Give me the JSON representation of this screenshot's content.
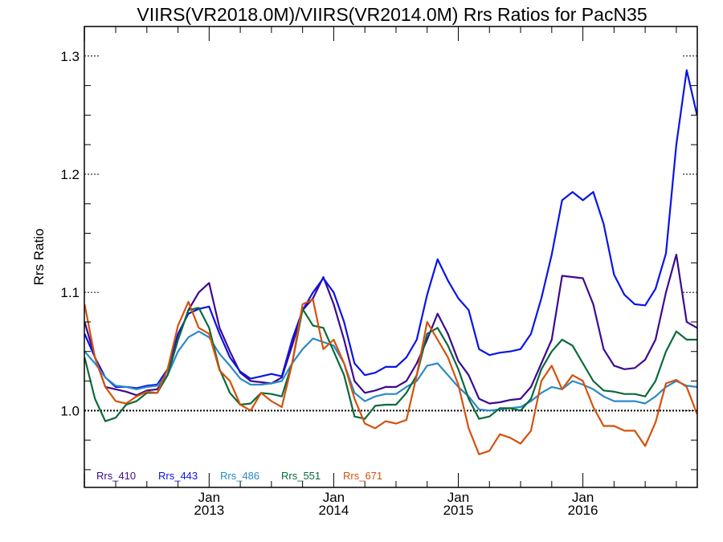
{
  "chart_data": {
    "type": "line",
    "title": "VIIRS(VR2018.0M)/VIIRS(VR2014.0M)  Rrs Ratios for PacN35",
    "xlabel": "",
    "ylabel": "Rrs Ratio",
    "x_range_months": [
      "2012-01",
      "2016-12"
    ],
    "ylim": [
      0.935,
      1.325
    ],
    "yticks": [
      {
        "value": 1.0,
        "label": "1.0"
      },
      {
        "value": 1.1,
        "label": "1.1"
      },
      {
        "value": 1.2,
        "label": "1.2"
      },
      {
        "value": 1.3,
        "label": "1.3"
      }
    ],
    "xticks": [
      {
        "date": "2013-01",
        "line1": "Jan",
        "line2": "2013"
      },
      {
        "date": "2014-01",
        "line1": "Jan",
        "line2": "2014"
      },
      {
        "date": "2015-01",
        "line1": "Jan",
        "line2": "2015"
      },
      {
        "date": "2016-01",
        "line1": "Jan",
        "line2": "2016"
      }
    ],
    "reference_line": 1.0,
    "legend_position": "bottom-left",
    "x": [
      "2012-01",
      "2012-02",
      "2012-03",
      "2012-04",
      "2012-05",
      "2012-06",
      "2012-07",
      "2012-08",
      "2012-09",
      "2012-10",
      "2012-11",
      "2012-12",
      "2013-01",
      "2013-02",
      "2013-03",
      "2013-04",
      "2013-05",
      "2013-06",
      "2013-07",
      "2013-08",
      "2013-09",
      "2013-10",
      "2013-11",
      "2013-12",
      "2014-01",
      "2014-02",
      "2014-03",
      "2014-04",
      "2014-05",
      "2014-06",
      "2014-07",
      "2014-08",
      "2014-09",
      "2014-10",
      "2014-11",
      "2014-12",
      "2015-01",
      "2015-02",
      "2015-03",
      "2015-04",
      "2015-05",
      "2015-06",
      "2015-07",
      "2015-08",
      "2015-09",
      "2015-10",
      "2015-11",
      "2015-12",
      "2016-01",
      "2016-02",
      "2016-03",
      "2016-04",
      "2016-05",
      "2016-06",
      "2016-07",
      "2016-08",
      "2016-09",
      "2016-10",
      "2016-11",
      "2016-12"
    ],
    "series": [
      {
        "name": "Rrs_410",
        "color": "#3d0a91",
        "values": [
          1.075,
          1.045,
          1.02,
          1.018,
          1.016,
          1.013,
          1.017,
          1.018,
          1.03,
          1.06,
          1.085,
          1.1,
          1.108,
          1.07,
          1.05,
          1.032,
          1.025,
          1.024,
          1.023,
          1.028,
          1.055,
          1.085,
          1.095,
          1.113,
          1.09,
          1.06,
          1.025,
          1.015,
          1.017,
          1.02,
          1.02,
          1.025,
          1.04,
          1.06,
          1.082,
          1.065,
          1.042,
          1.03,
          1.01,
          1.006,
          1.007,
          1.009,
          1.01,
          1.02,
          1.04,
          1.06,
          1.114,
          1.113,
          1.112,
          1.09,
          1.052,
          1.038,
          1.035,
          1.036,
          1.043,
          1.06,
          1.1,
          1.132,
          1.075,
          1.07
        ]
      },
      {
        "name": "Rrs_443",
        "color": "#0a14e6",
        "values": [
          1.065,
          1.045,
          1.028,
          1.02,
          1.02,
          1.019,
          1.021,
          1.022,
          1.035,
          1.065,
          1.082,
          1.086,
          1.088,
          1.065,
          1.045,
          1.033,
          1.027,
          1.029,
          1.031,
          1.029,
          1.06,
          1.085,
          1.1,
          1.112,
          1.1,
          1.075,
          1.04,
          1.03,
          1.032,
          1.037,
          1.037,
          1.045,
          1.06,
          1.098,
          1.128,
          1.11,
          1.095,
          1.085,
          1.052,
          1.047,
          1.049,
          1.05,
          1.052,
          1.065,
          1.095,
          1.132,
          1.178,
          1.185,
          1.178,
          1.185,
          1.158,
          1.115,
          1.098,
          1.09,
          1.089,
          1.103,
          1.133,
          1.225,
          1.288,
          1.25
        ]
      },
      {
        "name": "Rrs_486",
        "color": "#2a8ac8",
        "values": [
          1.05,
          1.04,
          1.028,
          1.021,
          1.02,
          1.018,
          1.02,
          1.021,
          1.03,
          1.05,
          1.062,
          1.067,
          1.062,
          1.048,
          1.038,
          1.027,
          1.022,
          1.022,
          1.023,
          1.025,
          1.04,
          1.052,
          1.061,
          1.058,
          1.055,
          1.04,
          1.015,
          1.008,
          1.012,
          1.014,
          1.014,
          1.02,
          1.025,
          1.038,
          1.04,
          1.03,
          1.02,
          1.012,
          1.001,
          1.0,
          1.001,
          1.002,
          1.003,
          1.008,
          1.015,
          1.02,
          1.018,
          1.025,
          1.022,
          1.018,
          1.012,
          1.008,
          1.008,
          1.008,
          1.006,
          1.012,
          1.02,
          1.025,
          1.021,
          1.02
        ]
      },
      {
        "name": "Rrs_551",
        "color": "#0b6a3a",
        "values": [
          1.045,
          1.01,
          0.991,
          0.994,
          1.005,
          1.008,
          1.015,
          1.015,
          1.03,
          1.06,
          1.085,
          1.087,
          1.07,
          1.035,
          1.015,
          1.005,
          1.006,
          1.015,
          1.014,
          1.012,
          1.04,
          1.086,
          1.072,
          1.07,
          1.05,
          1.03,
          0.995,
          0.993,
          1.004,
          1.005,
          1.005,
          1.015,
          1.03,
          1.065,
          1.07,
          1.055,
          1.035,
          1.01,
          0.993,
          0.995,
          1.002,
          1.002,
          1.0,
          1.01,
          1.035,
          1.05,
          1.06,
          1.055,
          1.04,
          1.025,
          1.017,
          1.016,
          1.014,
          1.014,
          1.012,
          1.025,
          1.05,
          1.067,
          1.06,
          1.06
        ]
      },
      {
        "name": "Rrs_671",
        "color": "#d4520c",
        "values": [
          1.09,
          1.045,
          1.02,
          1.008,
          1.006,
          1.012,
          1.016,
          1.015,
          1.035,
          1.072,
          1.092,
          1.07,
          1.065,
          1.034,
          1.025,
          1.005,
          1.0,
          1.015,
          1.008,
          1.003,
          1.04,
          1.09,
          1.094,
          1.052,
          1.06,
          1.04,
          1.01,
          0.989,
          0.985,
          0.991,
          0.989,
          0.992,
          1.03,
          1.075,
          1.06,
          1.045,
          1.022,
          0.985,
          0.963,
          0.966,
          0.98,
          0.977,
          0.972,
          0.983,
          1.025,
          1.038,
          1.018,
          1.03,
          1.025,
          1.003,
          0.987,
          0.987,
          0.983,
          0.983,
          0.97,
          0.99,
          1.023,
          1.026,
          1.02,
          0.997
        ]
      }
    ]
  }
}
